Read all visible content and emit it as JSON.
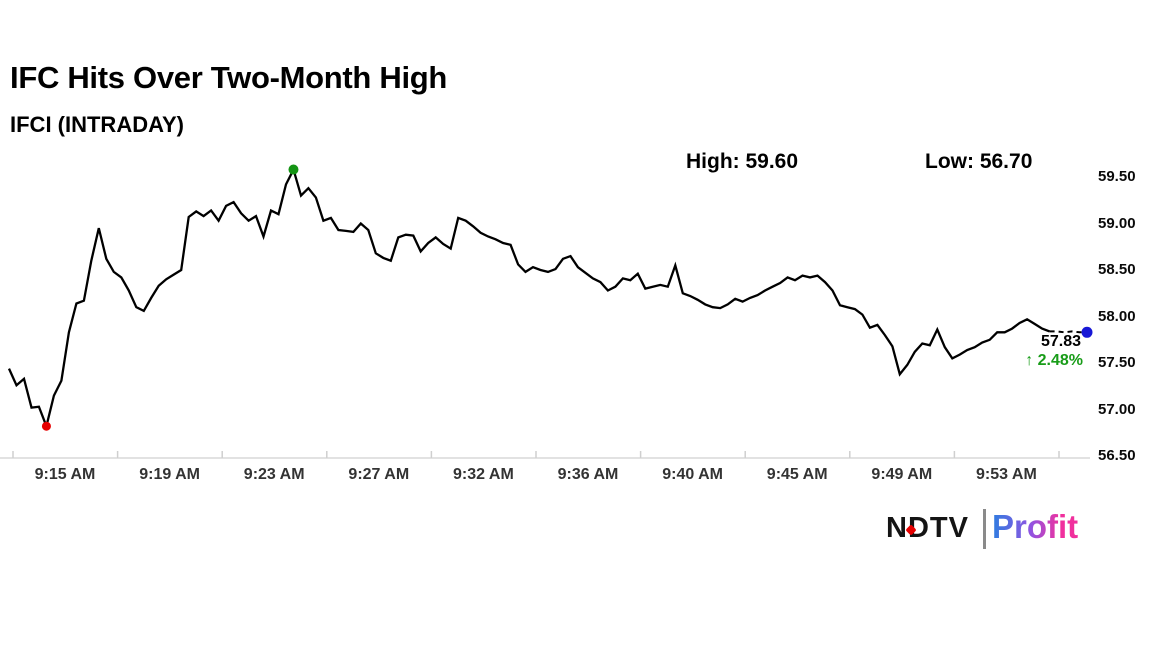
{
  "header": {
    "title": "IFC Hits Over Two-Month High",
    "subtitle": "IFCI (INTRADAY)",
    "high_label": "High: 59.60",
    "low_label": "Low: 56.70"
  },
  "annotation": {
    "last_price": "57.83",
    "change_label": "↑ 2.48%",
    "change_color": "#189c18"
  },
  "branding": {
    "ndtv_text": "NDTV",
    "profit_text": "Profit",
    "ndtv_color": "#141414",
    "dot_color": "#e60000",
    "profit_gradient": [
      "#2e7de0",
      "#9054e2",
      "#f0309d"
    ]
  },
  "chart_data": {
    "type": "line",
    "title": "IFC Hits Over Two-Month High",
    "series_name": "IFCI intraday price",
    "session_high": 59.6,
    "session_low": 56.7,
    "last_price": 57.83,
    "change_pct": 2.48,
    "x_labels": [
      "9:15 AM",
      "9:19 AM",
      "9:23 AM",
      "9:27 AM",
      "9:32 AM",
      "9:36 AM",
      "9:40 AM",
      "9:45 AM",
      "9:49 AM",
      "9:53 AM"
    ],
    "y_ticks": [
      59.5,
      59.0,
      58.5,
      58.0,
      57.5,
      57.0,
      56.5
    ],
    "ylim": [
      56.5,
      59.75
    ],
    "grid": "off",
    "legend": "none",
    "line_color": "#000000",
    "axis_color": "#d9d9d9",
    "points": [
      57.44,
      57.26,
      57.33,
      57.02,
      57.03,
      56.82,
      57.15,
      57.31,
      57.83,
      58.14,
      58.17,
      58.6,
      58.95,
      58.62,
      58.48,
      58.42,
      58.28,
      58.1,
      58.06,
      58.2,
      58.33,
      58.4,
      58.45,
      58.5,
      59.07,
      59.13,
      59.08,
      59.14,
      59.03,
      59.19,
      59.23,
      59.11,
      59.03,
      59.08,
      58.86,
      59.14,
      59.1,
      59.42,
      59.58,
      59.3,
      59.38,
      59.28,
      59.03,
      59.06,
      58.93,
      58.92,
      58.91,
      59.0,
      58.93,
      58.68,
      58.63,
      58.6,
      58.85,
      58.88,
      58.87,
      58.7,
      58.79,
      58.85,
      58.78,
      58.73,
      59.06,
      59.03,
      58.97,
      58.9,
      58.86,
      58.83,
      58.79,
      58.77,
      58.56,
      58.48,
      58.53,
      58.5,
      58.48,
      58.51,
      58.62,
      58.65,
      58.53,
      58.47,
      58.41,
      58.37,
      58.28,
      58.32,
      58.41,
      58.39,
      58.46,
      58.3,
      58.32,
      58.34,
      58.32,
      58.55,
      58.25,
      58.22,
      58.18,
      58.13,
      58.1,
      58.09,
      58.13,
      58.19,
      58.16,
      58.2,
      58.23,
      58.28,
      58.32,
      58.36,
      58.42,
      58.39,
      58.44,
      58.42,
      58.44,
      58.37,
      58.28,
      58.12,
      58.1,
      58.08,
      58.02,
      57.88,
      57.91,
      57.8,
      57.68,
      57.38,
      57.48,
      57.62,
      57.71,
      57.69,
      57.86,
      57.67,
      57.55,
      57.59,
      57.64,
      57.67,
      57.72,
      57.75,
      57.83,
      57.83,
      57.87,
      57.93,
      57.97,
      57.92,
      57.87,
      57.84,
      57.84,
      57.83,
      57.84,
      57.83,
      57.83
    ],
    "markers": {
      "session_low_point": {
        "index": 5,
        "value": 56.82,
        "color": "#e60000"
      },
      "session_high_point": {
        "index": 38,
        "value": 59.58,
        "color": "#149414"
      },
      "last_point": {
        "index": 144,
        "value": 57.83,
        "color": "#1717d6"
      }
    },
    "dashed_tail_from_index": 139
  }
}
